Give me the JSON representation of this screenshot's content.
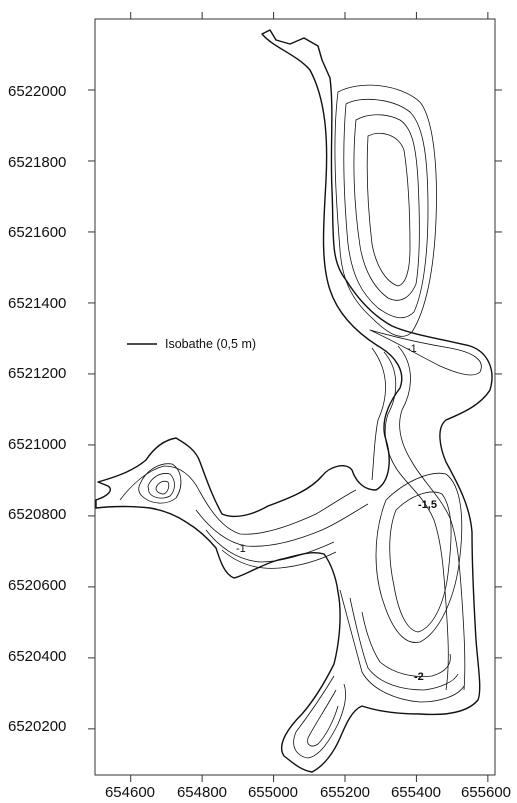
{
  "map": {
    "legend": {
      "label": "Isobathe (0,5 m)"
    },
    "contour_labels": {
      "c1": "-1",
      "c2": "-1",
      "c3": "-1,5",
      "c4": "-2"
    },
    "colors": {
      "line": "#111111",
      "frame": "#333333",
      "background": "#ffffff"
    }
  },
  "chart_data": {
    "type": "contour-map",
    "title": "",
    "xlabel": "",
    "ylabel": "",
    "xlim": [
      654500,
      655620
    ],
    "ylim": [
      6520070,
      6522200
    ],
    "x_ticks": [
      654600,
      654800,
      655000,
      655200,
      655400,
      655600
    ],
    "y_ticks": [
      6520200,
      6520400,
      6520600,
      6520800,
      6521000,
      6521200,
      6521400,
      6521600,
      6521800,
      6522000
    ],
    "contour_interval_m": 0.5,
    "depth_labels_m": [
      -1,
      -1,
      -1.5,
      -2
    ],
    "grid": false,
    "legend_position": "middle-left"
  }
}
